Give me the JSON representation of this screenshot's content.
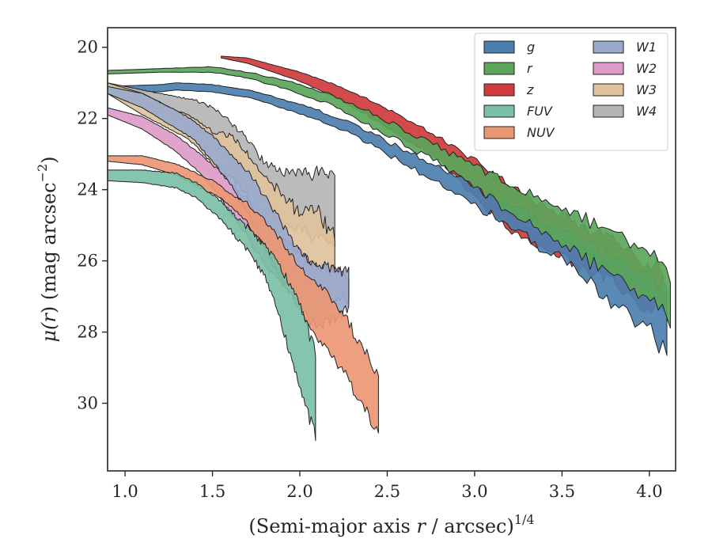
{
  "chart_data": {
    "type": "area",
    "title": "",
    "xlabel": "(Semi-major axis r / arcsec)",
    "xlabel_parts": {
      "pre": "(Semi-major axis ",
      "var": "r",
      "post": " / arcsec)",
      "exp": "1/4"
    },
    "ylabel": "μ(r) (mag arcsec−2)",
    "ylabel_parts": {
      "mu": "μ(",
      "var": "r",
      "mid": ") (mag arcsec",
      "exp": "−2",
      "close": ")"
    },
    "xlim": [
      0.9,
      4.15
    ],
    "ylim": [
      31.9,
      19.45
    ],
    "y_inverted": true,
    "xticks": [
      1.0,
      1.5,
      2.0,
      2.5,
      3.0,
      3.5,
      4.0
    ],
    "xtick_labels": [
      "1.0",
      "1.5",
      "2.0",
      "2.5",
      "3.0",
      "3.5",
      "4.0"
    ],
    "yticks": [
      20,
      22,
      24,
      26,
      28,
      30
    ],
    "ytick_labels": [
      "20",
      "22",
      "24",
      "26",
      "28",
      "30"
    ],
    "grid": false,
    "legend_position": "top-right",
    "legend_columns": 2,
    "series": [
      {
        "name": "g",
        "color": "#4c7fb0",
        "x_max": 4.1,
        "jitter": 0.5,
        "points": [
          [
            0.9,
            21.1,
            21.25
          ],
          [
            1.2,
            21.05,
            21.25
          ],
          [
            1.3,
            21.0,
            21.2
          ],
          [
            1.5,
            21.05,
            21.25
          ],
          [
            1.7,
            21.2,
            21.4
          ],
          [
            2.0,
            21.6,
            21.85
          ],
          [
            2.2,
            21.95,
            22.2
          ],
          [
            2.4,
            22.4,
            22.7
          ],
          [
            2.6,
            22.9,
            23.25
          ],
          [
            2.8,
            23.4,
            23.8
          ],
          [
            3.0,
            23.95,
            24.4
          ],
          [
            3.2,
            24.45,
            25.0
          ],
          [
            3.5,
            25.2,
            25.9
          ],
          [
            3.8,
            26.0,
            27.2
          ],
          [
            4.0,
            26.5,
            27.8
          ],
          [
            4.1,
            26.8,
            28.6
          ]
        ]
      },
      {
        "name": "r",
        "color": "#5aa55a",
        "x_max": 4.12,
        "jitter": 0.5,
        "points": [
          [
            0.9,
            20.65,
            20.75
          ],
          [
            1.2,
            20.6,
            20.7
          ],
          [
            1.5,
            20.55,
            20.7
          ],
          [
            1.7,
            20.7,
            20.85
          ],
          [
            2.0,
            21.05,
            21.3
          ],
          [
            2.2,
            21.4,
            21.65
          ],
          [
            2.4,
            21.85,
            22.2
          ],
          [
            2.6,
            22.35,
            22.7
          ],
          [
            2.8,
            22.85,
            23.25
          ],
          [
            3.0,
            23.35,
            23.9
          ],
          [
            3.2,
            23.85,
            24.55
          ],
          [
            3.5,
            24.6,
            25.5
          ],
          [
            3.8,
            25.3,
            26.4
          ],
          [
            4.0,
            25.8,
            27.0
          ],
          [
            4.12,
            26.5,
            27.6
          ]
        ]
      },
      {
        "name": "z",
        "color": "#d03b3b",
        "x_max": 4.08,
        "jitter": 0.5,
        "points": [
          [
            1.55,
            20.25,
            20.3
          ],
          [
            1.7,
            20.3,
            20.45
          ],
          [
            2.0,
            20.7,
            20.95
          ],
          [
            2.2,
            21.05,
            21.4
          ],
          [
            2.4,
            21.5,
            21.95
          ],
          [
            2.6,
            22.0,
            22.55
          ],
          [
            2.8,
            22.55,
            23.15
          ],
          [
            3.0,
            23.2,
            24.2
          ],
          [
            3.2,
            23.9,
            25.1
          ],
          [
            3.5,
            24.8,
            25.9
          ],
          [
            3.8,
            25.5,
            26.6
          ],
          [
            4.0,
            26.2,
            27.4
          ],
          [
            4.08,
            26.3,
            27.0
          ]
        ]
      },
      {
        "name": "FUV",
        "color": "#7bbfa6",
        "x_max": 2.09,
        "jitter": 0.35,
        "points": [
          [
            0.9,
            23.45,
            23.75
          ],
          [
            1.1,
            23.45,
            23.8
          ],
          [
            1.3,
            23.55,
            23.95
          ],
          [
            1.4,
            23.8,
            24.2
          ],
          [
            1.5,
            24.15,
            24.6
          ],
          [
            1.6,
            24.6,
            25.1
          ],
          [
            1.7,
            25.1,
            25.7
          ],
          [
            1.8,
            25.6,
            26.4
          ],
          [
            1.9,
            26.3,
            27.8
          ],
          [
            2.0,
            27.2,
            29.5
          ],
          [
            2.09,
            28.7,
            30.9
          ]
        ]
      },
      {
        "name": "NUV",
        "color": "#eb9774",
        "x_max": 2.45,
        "jitter": 0.4,
        "points": [
          [
            0.9,
            23.05,
            23.2
          ],
          [
            1.1,
            23.05,
            23.3
          ],
          [
            1.3,
            23.3,
            23.6
          ],
          [
            1.5,
            23.75,
            24.1
          ],
          [
            1.6,
            24.1,
            24.4
          ],
          [
            1.7,
            24.4,
            24.9
          ],
          [
            1.8,
            24.9,
            25.6
          ],
          [
            1.9,
            25.5,
            26.5
          ],
          [
            2.0,
            26.2,
            27.3
          ],
          [
            2.1,
            26.7,
            28.2
          ],
          [
            2.2,
            27.2,
            28.7
          ],
          [
            2.3,
            28.0,
            29.5
          ],
          [
            2.45,
            29.3,
            30.8
          ]
        ]
      },
      {
        "name": "W1",
        "color": "#9aaacb",
        "x_max": 2.28,
        "jitter": 0.4,
        "points": [
          [
            0.9,
            21.1,
            21.3
          ],
          [
            1.1,
            21.3,
            21.7
          ],
          [
            1.3,
            21.8,
            22.3
          ],
          [
            1.4,
            22.1,
            22.6
          ],
          [
            1.5,
            22.5,
            23.2
          ],
          [
            1.6,
            23.0,
            23.8
          ],
          [
            1.7,
            23.5,
            24.6
          ],
          [
            1.8,
            24.2,
            25.6
          ],
          [
            1.9,
            25.0,
            26.6
          ],
          [
            2.0,
            25.8,
            27.2
          ],
          [
            2.1,
            26.2,
            27.8
          ],
          [
            2.2,
            26.3,
            27.6
          ],
          [
            2.28,
            26.4,
            27.3
          ]
        ]
      },
      {
        "name": "W2",
        "color": "#dd9cc8",
        "x_max": 2.28,
        "jitter": 0.4,
        "points": [
          [
            0.9,
            21.7,
            21.9
          ],
          [
            1.1,
            21.95,
            22.3
          ],
          [
            1.3,
            22.5,
            22.95
          ],
          [
            1.4,
            22.9,
            23.4
          ],
          [
            1.5,
            23.3,
            23.9
          ],
          [
            1.6,
            23.8,
            24.6
          ],
          [
            1.7,
            24.3,
            25.3
          ],
          [
            1.8,
            25.0,
            26.1
          ],
          [
            1.9,
            25.5,
            26.6
          ],
          [
            2.0,
            25.8,
            27.0
          ],
          [
            2.1,
            26.2,
            27.3
          ],
          [
            2.2,
            26.3,
            27.1
          ],
          [
            2.28,
            26.5,
            27.0
          ]
        ]
      },
      {
        "name": "W3",
        "color": "#e0c29c",
        "x_max": 2.2,
        "jitter": 0.5,
        "points": [
          [
            0.9,
            21.0,
            21.3
          ],
          [
            1.1,
            21.3,
            21.9
          ],
          [
            1.3,
            21.8,
            22.4
          ],
          [
            1.4,
            22.0,
            22.7
          ],
          [
            1.5,
            22.4,
            23.3
          ],
          [
            1.6,
            22.5,
            23.6
          ],
          [
            1.7,
            23.0,
            24.1
          ],
          [
            1.8,
            23.7,
            25.2
          ],
          [
            1.9,
            24.2,
            26.0
          ],
          [
            2.0,
            24.7,
            26.0
          ],
          [
            2.1,
            24.6,
            26.3
          ],
          [
            2.2,
            25.5,
            26.6
          ]
        ]
      },
      {
        "name": "W4",
        "color": "#b5b5b5",
        "x_max": 2.2,
        "jitter": 0.45,
        "points": [
          [
            0.9,
            21.0,
            21.15
          ],
          [
            1.1,
            21.2,
            21.55
          ],
          [
            1.3,
            21.4,
            22.0
          ],
          [
            1.4,
            21.5,
            22.2
          ],
          [
            1.5,
            21.7,
            22.55
          ],
          [
            1.6,
            22.1,
            23.2
          ],
          [
            1.7,
            22.6,
            23.9
          ],
          [
            1.8,
            23.3,
            24.3
          ],
          [
            1.9,
            23.5,
            24.9
          ],
          [
            2.0,
            23.6,
            25.1
          ],
          [
            2.1,
            23.6,
            25.3
          ],
          [
            2.2,
            23.6,
            25.5
          ]
        ]
      }
    ]
  }
}
